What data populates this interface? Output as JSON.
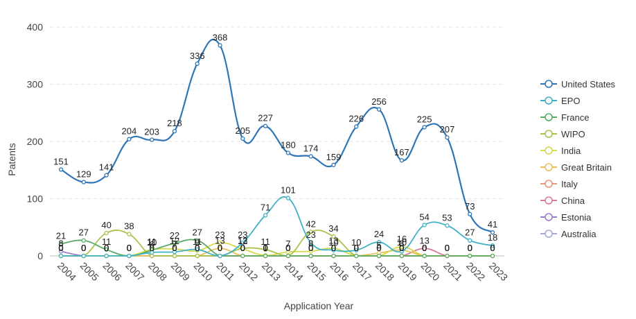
{
  "chart_data": {
    "type": "line",
    "xlabel": "Application Year",
    "ylabel": "Patents",
    "ylim": [
      0,
      400
    ],
    "yticks": [
      0,
      100,
      200,
      300,
      400
    ],
    "grid": "horizontal dashed",
    "legend": "right",
    "categories": [
      "2004",
      "2005",
      "2006",
      "2007",
      "2008",
      "2009",
      "2010",
      "2011",
      "2012",
      "2013",
      "2014",
      "2015",
      "2016",
      "2017",
      "2018",
      "2019",
      "2020",
      "2021",
      "2022",
      "2023"
    ],
    "series": [
      {
        "name": "United States",
        "color": "#2e75b6",
        "values": [
          151,
          129,
          141,
          204,
          203,
          218,
          336,
          368,
          205,
          227,
          180,
          174,
          159,
          226,
          256,
          167,
          225,
          207,
          73,
          41
        ]
      },
      {
        "name": "EPO",
        "color": "#3fb1c6",
        "values": [
          0,
          0,
          0,
          0,
          6,
          7,
          11,
          0,
          23,
          71,
          101,
          23,
          10,
          10,
          24,
          8,
          54,
          53,
          27,
          18
        ]
      },
      {
        "name": "France",
        "color": "#5aaa64",
        "values": [
          21,
          27,
          11,
          0,
          10,
          22,
          27,
          0,
          0,
          0,
          0,
          0,
          0,
          0,
          0,
          0,
          0,
          0,
          0,
          0
        ]
      },
      {
        "name": "WIPO",
        "color": "#a8c34a",
        "values": [
          0,
          0,
          40,
          38,
          0,
          0,
          0,
          0,
          13,
          11,
          0,
          42,
          34,
          0,
          0,
          0,
          0,
          0,
          0,
          0
        ]
      },
      {
        "name": "India",
        "color": "#d7d94a",
        "values": [
          0,
          0,
          0,
          0,
          11,
          12,
          9,
          23,
          12,
          1,
          7,
          8,
          13,
          0,
          0,
          16,
          0,
          0,
          0,
          0
        ]
      },
      {
        "name": "Great Britain",
        "color": "#e8c15a",
        "values": [
          0,
          0,
          0,
          0,
          0,
          0,
          0,
          13,
          0,
          0,
          0,
          0,
          0,
          0,
          5,
          10,
          0,
          0,
          0,
          0
        ]
      },
      {
        "name": "Italy",
        "color": "#e39a7a",
        "values": [
          0,
          0,
          0,
          0,
          0,
          0,
          0,
          0,
          0,
          0,
          0,
          0,
          0,
          0,
          0,
          0,
          0,
          0,
          0,
          0
        ]
      },
      {
        "name": "China",
        "color": "#d77b9a",
        "values": [
          0,
          0,
          0,
          0,
          0,
          0,
          0,
          0,
          0,
          0,
          0,
          0,
          0,
          0,
          0,
          0,
          13,
          0,
          0,
          0
        ]
      },
      {
        "name": "Estonia",
        "color": "#9c7cc8",
        "values": [
          8,
          0,
          0,
          0,
          0,
          0,
          0,
          0,
          0,
          0,
          0,
          0,
          0,
          0,
          0,
          0,
          0,
          0,
          0,
          0
        ]
      },
      {
        "name": "Australia",
        "color": "#a9a9d6",
        "values": [
          0,
          0,
          0,
          0,
          0,
          0,
          0,
          0,
          0,
          0,
          0,
          0,
          0,
          0,
          0,
          0,
          0,
          0,
          0,
          0
        ]
      }
    ]
  }
}
